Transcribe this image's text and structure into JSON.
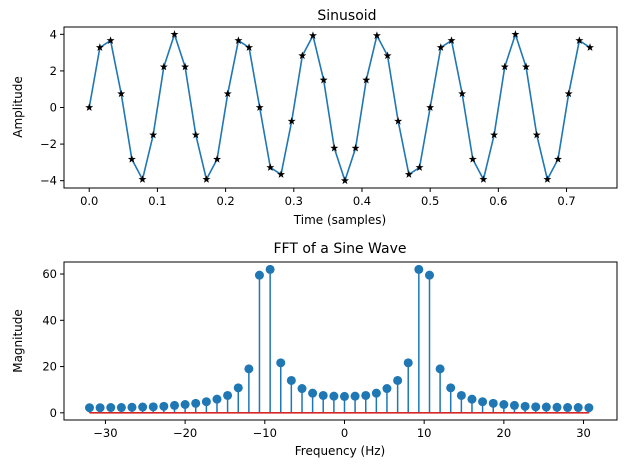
{
  "chart_data": [
    {
      "type": "line",
      "title": "Sinusoid",
      "xlabel": "Time (samples)",
      "ylabel": "Amplitude",
      "xlim": [
        -0.037,
        0.774
      ],
      "ylim": [
        -4.4,
        4.4
      ],
      "xticks": [
        0,
        0.1,
        0.2,
        0.3,
        0.4,
        0.5,
        0.6,
        0.7
      ],
      "xtick_labels": [
        "0.0",
        "0.1",
        "0.2",
        "0.3",
        "0.4",
        "0.5",
        "0.6",
        "0.7"
      ],
      "yticks": [
        -4,
        -2,
        0,
        2,
        4
      ],
      "ytick_labels": [
        "−4",
        "−2",
        "0",
        "2",
        "4"
      ],
      "marker": "star",
      "line_color": "#1f77b4",
      "marker_color": "#000000",
      "x": [
        0.0,
        0.0156,
        0.0313,
        0.0469,
        0.0625,
        0.0781,
        0.0938,
        0.1094,
        0.125,
        0.1406,
        0.1563,
        0.1719,
        0.1875,
        0.2031,
        0.2188,
        0.2344,
        0.25,
        0.2656,
        0.2813,
        0.2969,
        0.3125,
        0.3281,
        0.3438,
        0.3594,
        0.375,
        0.3906,
        0.4063,
        0.4219,
        0.4375,
        0.4531,
        0.4688,
        0.4844,
        0.5,
        0.5156,
        0.5313,
        0.5469,
        0.5625,
        0.5781,
        0.5938,
        0.6094,
        0.625,
        0.6406,
        0.6563,
        0.6719,
        0.6875,
        0.7031,
        0.7188,
        0.7344
      ],
      "y": [
        0.0,
        3.28,
        3.66,
        0.75,
        -2.83,
        -3.93,
        -1.5,
        2.22,
        4.0,
        2.22,
        -1.5,
        -3.93,
        -2.83,
        0.75,
        3.66,
        3.28,
        0.0,
        -3.28,
        -3.66,
        -0.75,
        2.83,
        3.93,
        1.5,
        -2.22,
        -4.0,
        -2.22,
        1.5,
        3.93,
        2.83,
        -0.75,
        -3.66,
        -3.28,
        0.0,
        3.28,
        3.66,
        0.75,
        -2.83,
        -3.93,
        -1.5,
        2.22,
        4.0,
        2.22,
        -1.5,
        -3.93,
        -2.83,
        0.75,
        3.66,
        3.28
      ]
    },
    {
      "type": "stem",
      "title": "FFT of a Sine Wave",
      "xlabel": "Frequency (Hz)",
      "ylabel": "Magnitude",
      "xlim": [
        -35.2,
        34.2
      ],
      "ylim": [
        -3.1,
        65.2
      ],
      "xticks": [
        -30,
        -20,
        -10,
        0,
        10,
        20,
        30
      ],
      "xtick_labels": [
        "−30",
        "−20",
        "−10",
        "0",
        "10",
        "20",
        "30"
      ],
      "yticks": [
        0,
        20,
        40,
        60
      ],
      "ytick_labels": [
        "0",
        "20",
        "40",
        "60"
      ],
      "stem_color": "#1f77b4",
      "baseline_color": "#d62728",
      "x": [
        -32.0,
        -30.67,
        -29.33,
        -28.0,
        -26.67,
        -25.33,
        -24.0,
        -22.67,
        -21.33,
        -20.0,
        -18.67,
        -17.33,
        -16.0,
        -14.67,
        -13.33,
        -12.0,
        -10.67,
        -9.33,
        -8.0,
        -6.67,
        -5.33,
        -4.0,
        -2.67,
        -1.33,
        0.0,
        1.33,
        2.67,
        4.0,
        5.33,
        6.67,
        8.0,
        9.33,
        10.67,
        12.0,
        13.33,
        14.67,
        16.0,
        17.33,
        18.67,
        20.0,
        21.33,
        22.67,
        24.0,
        25.33,
        26.67,
        28.0,
        29.33,
        30.67
      ],
      "values": [
        2.2,
        2.2,
        2.3,
        2.3,
        2.4,
        2.5,
        2.6,
        2.8,
        3.2,
        3.6,
        4.1,
        4.8,
        5.9,
        7.5,
        10.8,
        19.0,
        59.5,
        62.0,
        21.6,
        14.0,
        10.5,
        8.5,
        7.5,
        7.2,
        7.1,
        7.2,
        7.5,
        8.5,
        10.5,
        14.0,
        21.6,
        62.0,
        59.5,
        19.0,
        10.8,
        7.5,
        5.9,
        4.8,
        4.1,
        3.6,
        3.2,
        2.8,
        2.6,
        2.5,
        2.4,
        2.3,
        2.3,
        2.2
      ]
    }
  ]
}
